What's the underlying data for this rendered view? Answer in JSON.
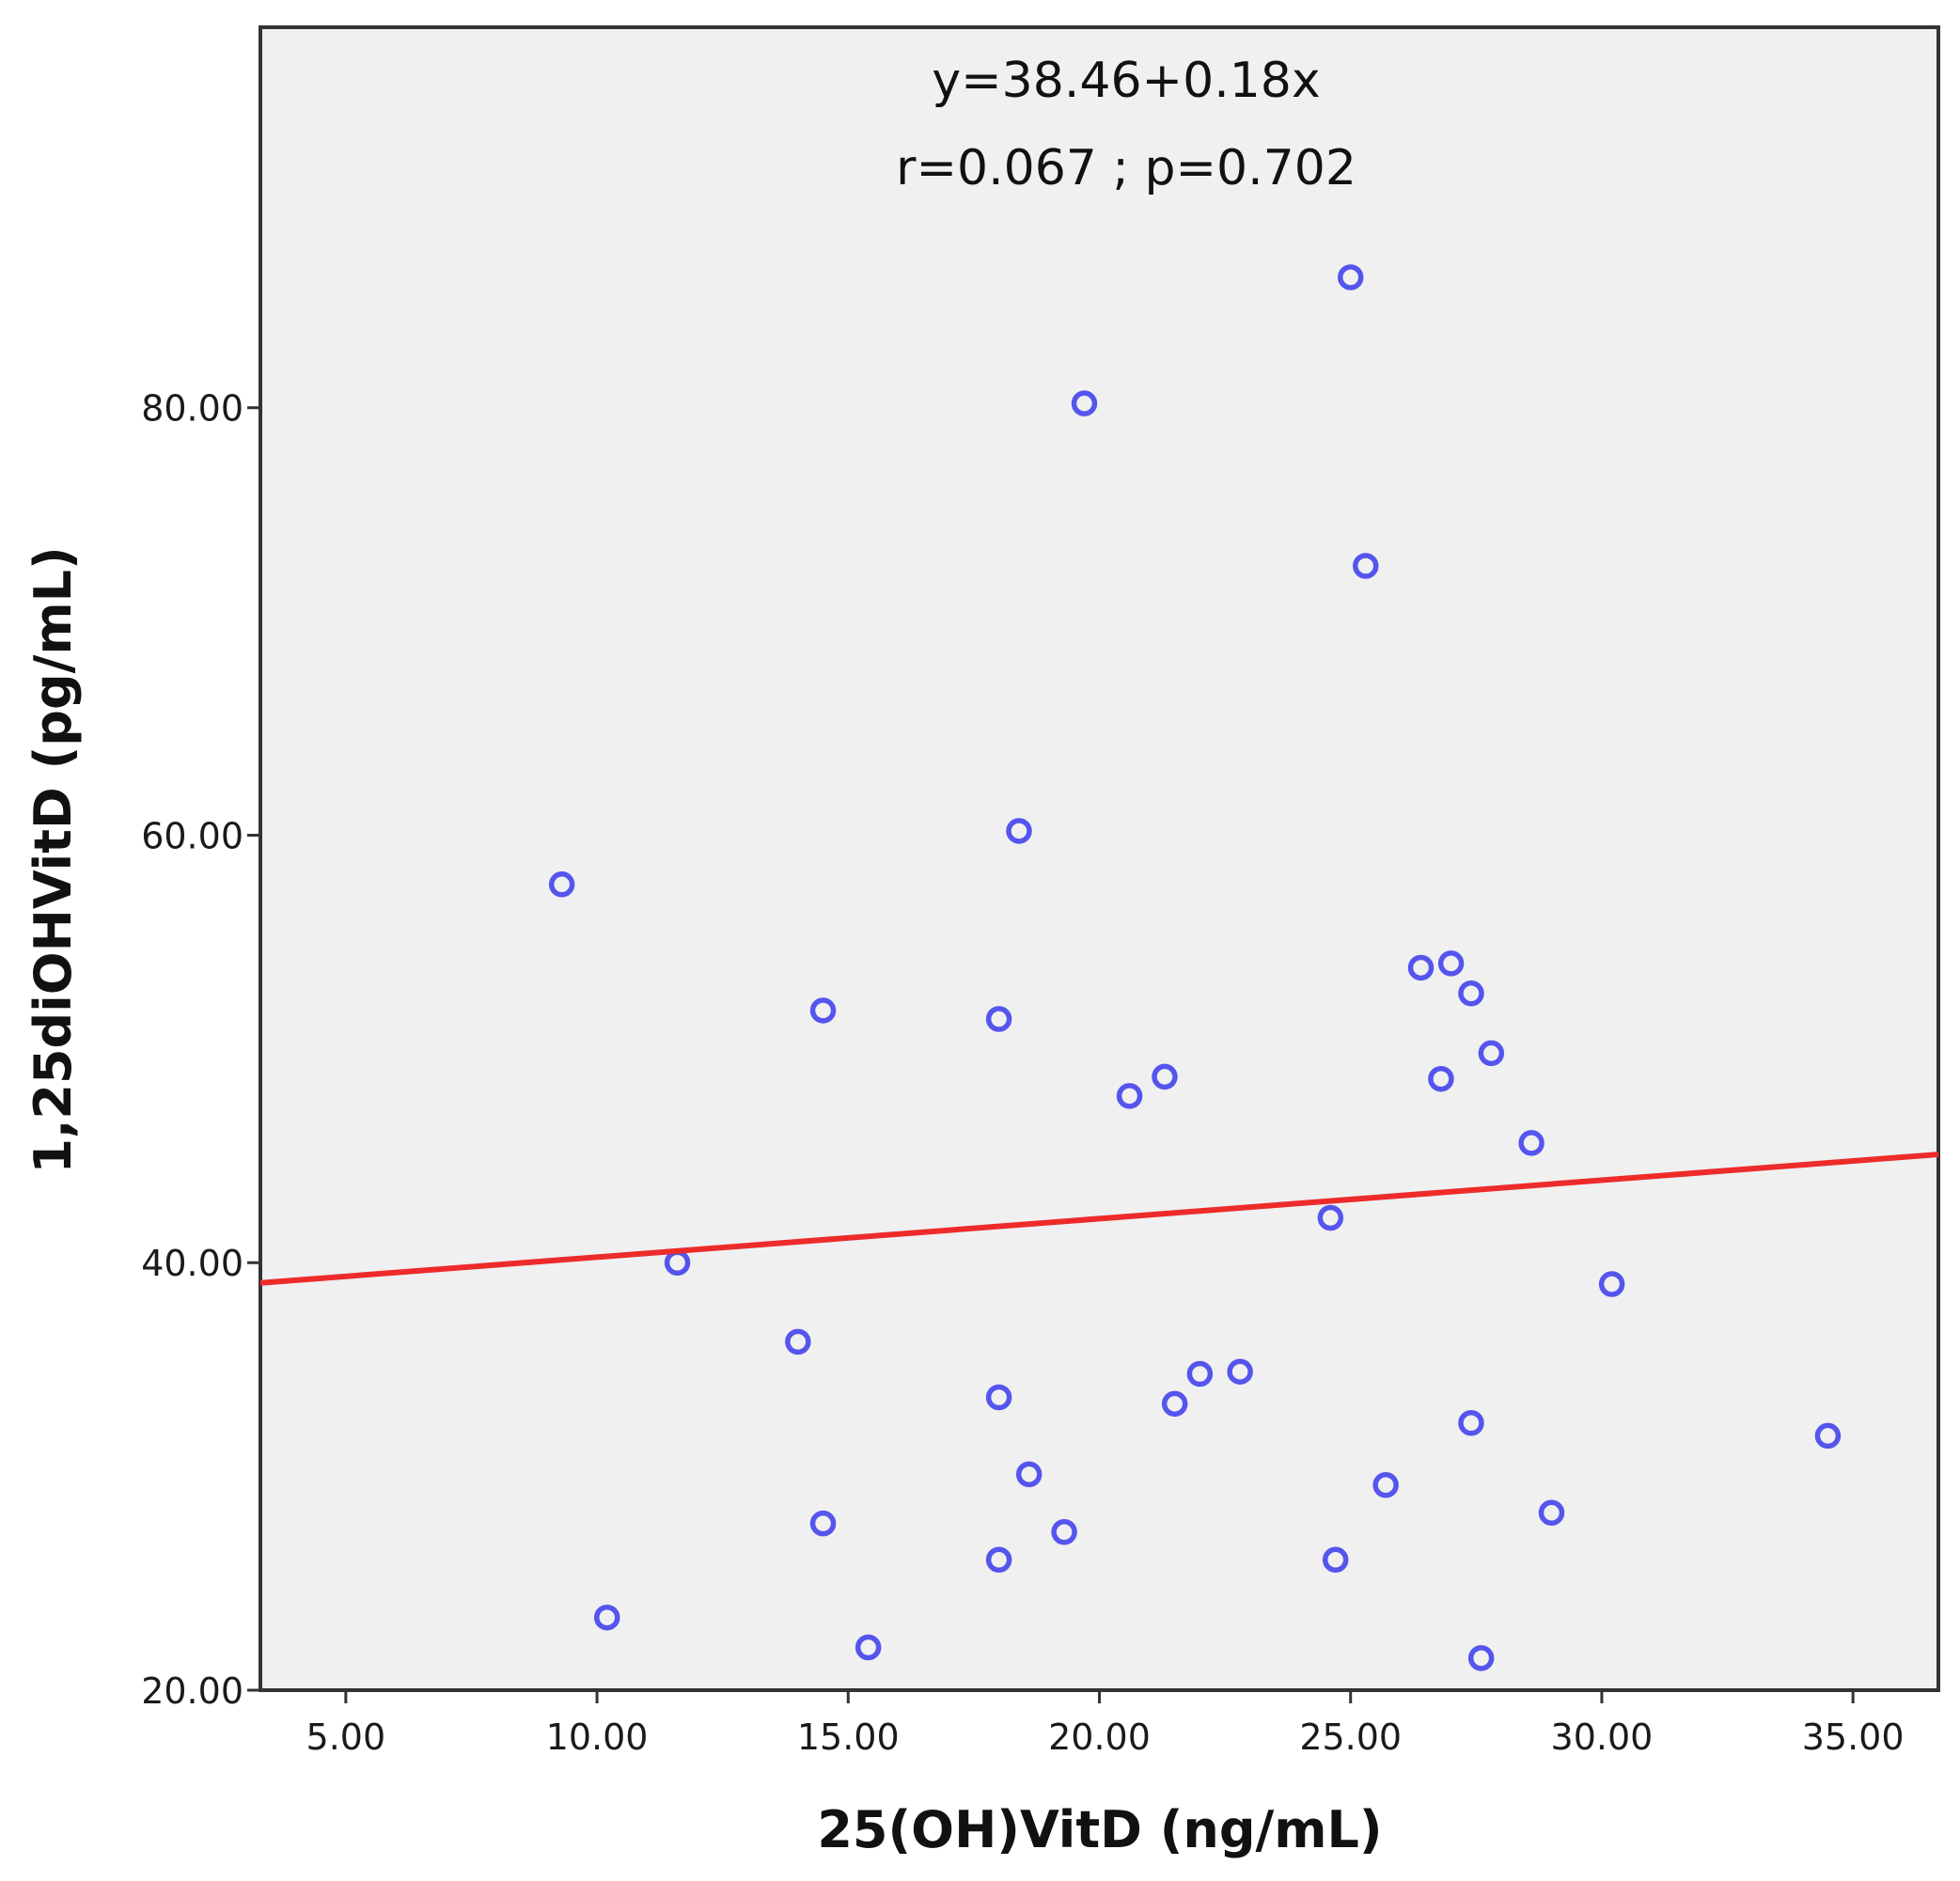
{
  "chart_data": {
    "type": "scatter",
    "title": "",
    "xlabel": "25(OH)VitD (ng/mL)",
    "ylabel": "1,25diOHVitD (pg/mL)",
    "xlim": [
      3.3,
      36.7
    ],
    "ylim": [
      20.0,
      97.8
    ],
    "xticks": [
      5,
      10,
      15,
      20,
      25,
      30,
      35
    ],
    "xtick_labels": [
      "5.00",
      "10.00",
      "15.00",
      "20.00",
      "25.00",
      "30.00",
      "35.00"
    ],
    "yticks": [
      20,
      40,
      60,
      80
    ],
    "ytick_labels": [
      "20.00",
      "40.00",
      "60.00",
      "80.00"
    ],
    "grid": false,
    "annotations": [
      "y=38.46+0.18x",
      "r=0.067 ; p=0.702"
    ],
    "regression": {
      "intercept": 38.46,
      "slope": 0.18,
      "color": "#ee2b2b"
    },
    "background_color": "#f0f0f0",
    "marker_color": "#5555ee",
    "series": [
      {
        "name": "observations",
        "points": [
          {
            "x": 25.0,
            "y": 86.1
          },
          {
            "x": 19.7,
            "y": 80.2
          },
          {
            "x": 25.3,
            "y": 72.6
          },
          {
            "x": 18.4,
            "y": 60.2
          },
          {
            "x": 9.3,
            "y": 57.7
          },
          {
            "x": 27.0,
            "y": 54.0
          },
          {
            "x": 26.4,
            "y": 53.8
          },
          {
            "x": 27.4,
            "y": 52.6
          },
          {
            "x": 14.5,
            "y": 51.8
          },
          {
            "x": 18.0,
            "y": 51.4
          },
          {
            "x": 27.8,
            "y": 49.8
          },
          {
            "x": 21.3,
            "y": 48.7
          },
          {
            "x": 26.8,
            "y": 48.6
          },
          {
            "x": 20.6,
            "y": 47.8
          },
          {
            "x": 28.6,
            "y": 45.6
          },
          {
            "x": 24.6,
            "y": 42.1
          },
          {
            "x": 11.6,
            "y": 40.0
          },
          {
            "x": 30.2,
            "y": 39.0
          },
          {
            "x": 14.0,
            "y": 36.3
          },
          {
            "x": 22.8,
            "y": 34.9
          },
          {
            "x": 22.0,
            "y": 34.8
          },
          {
            "x": 18.0,
            "y": 33.7
          },
          {
            "x": 21.5,
            "y": 33.4
          },
          {
            "x": 27.4,
            "y": 32.5
          },
          {
            "x": 34.5,
            "y": 31.9
          },
          {
            "x": 18.6,
            "y": 30.1
          },
          {
            "x": 25.7,
            "y": 29.6
          },
          {
            "x": 29.0,
            "y": 28.3
          },
          {
            "x": 14.5,
            "y": 27.8
          },
          {
            "x": 19.3,
            "y": 27.4
          },
          {
            "x": 18.0,
            "y": 26.1
          },
          {
            "x": 24.7,
            "y": 26.1
          },
          {
            "x": 10.2,
            "y": 23.4
          },
          {
            "x": 15.4,
            "y": 22.0
          },
          {
            "x": 27.6,
            "y": 21.5
          }
        ]
      }
    ]
  }
}
